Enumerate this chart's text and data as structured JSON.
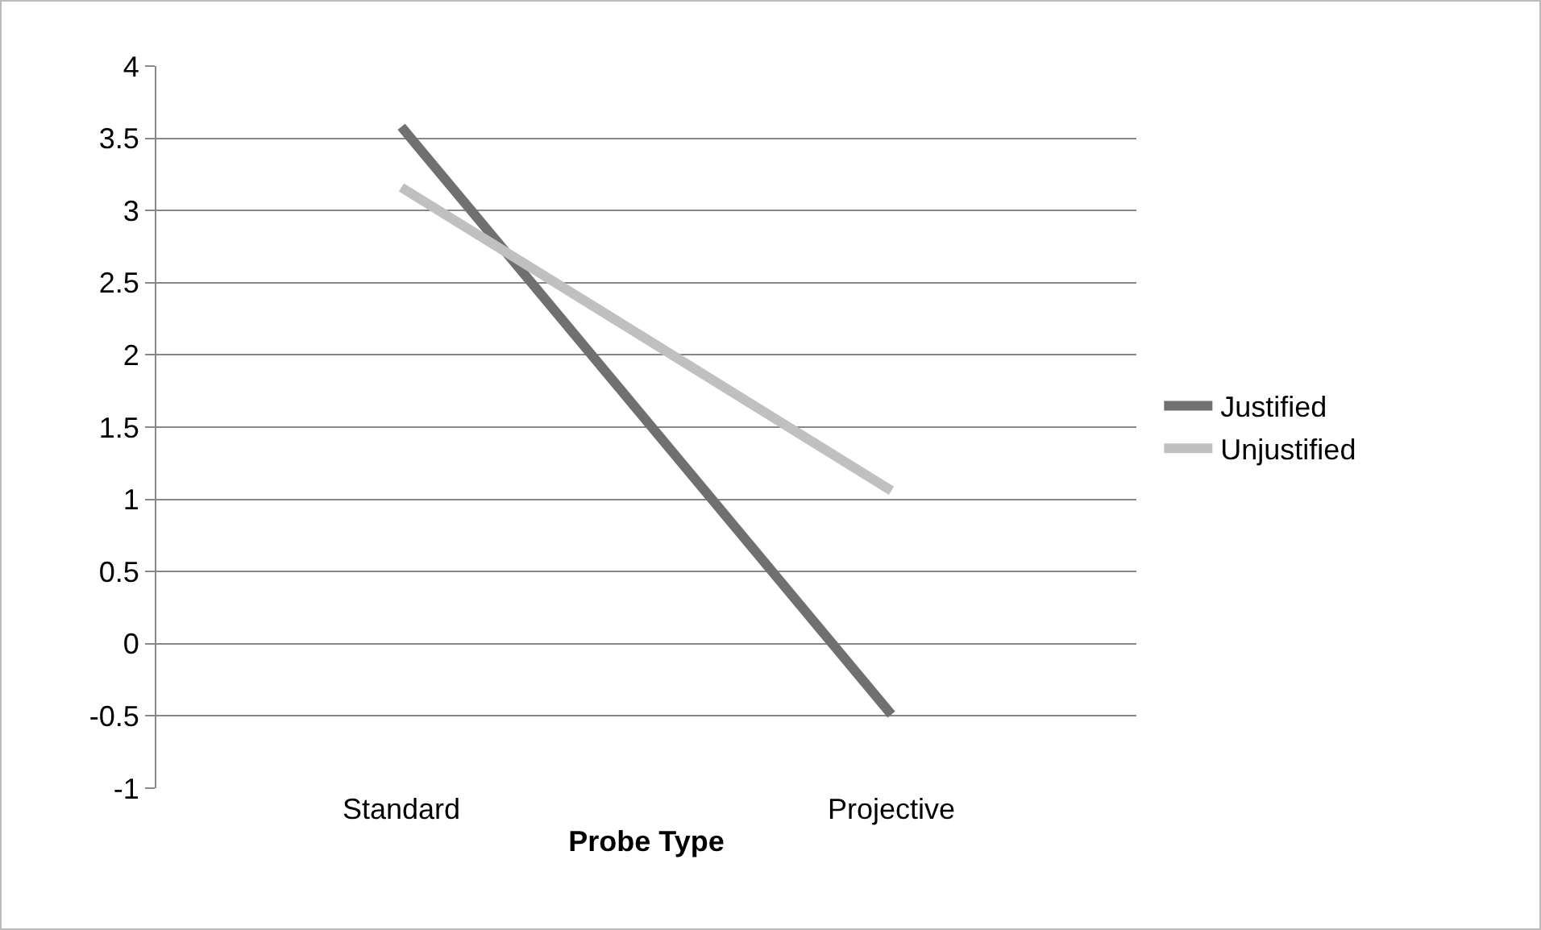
{
  "chart_data": {
    "type": "line",
    "xlabel": "Probe Type",
    "categories": [
      "Standard",
      "Projective"
    ],
    "series": [
      {
        "name": "Justified",
        "color": "#707070",
        "values": [
          3.58,
          -0.49
        ]
      },
      {
        "name": "Unjustified",
        "color": "#c0c0c0",
        "values": [
          3.16,
          1.06
        ]
      }
    ],
    "ylim": [
      -1,
      4
    ],
    "yticks": [
      -1,
      -0.5,
      0,
      0.5,
      1,
      1.5,
      2,
      2.5,
      3,
      3.5,
      4
    ],
    "grid": "y",
    "legend": "right",
    "marker": "none",
    "line_style": "solid"
  }
}
